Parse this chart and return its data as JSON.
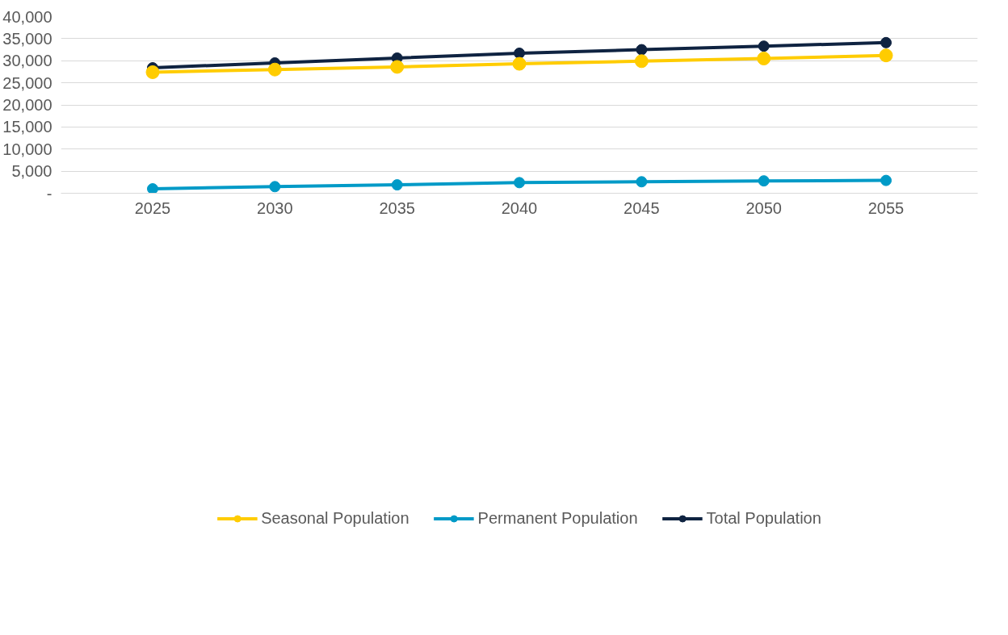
{
  "chart_data": {
    "type": "line",
    "categories": [
      "2025",
      "2030",
      "2035",
      "2040",
      "2045",
      "2050",
      "2055"
    ],
    "series": [
      {
        "name": "Seasonal Population",
        "color": "#ffcc00",
        "values": [
          27400,
          28000,
          28600,
          29300,
          29900,
          30500,
          31200
        ]
      },
      {
        "name": "Permanent Population",
        "color": "#009ac7",
        "values": [
          1000,
          1500,
          1900,
          2400,
          2600,
          2800,
          2900
        ]
      },
      {
        "name": "Total Population",
        "color": "#0f2341",
        "values": [
          28400,
          29500,
          30600,
          31700,
          32500,
          33300,
          34100
        ]
      }
    ],
    "ylim": [
      0,
      40000
    ],
    "yticks": [
      {
        "value": 0,
        "label": "-"
      },
      {
        "value": 5000,
        "label": "5,000"
      },
      {
        "value": 10000,
        "label": "10,000"
      },
      {
        "value": 15000,
        "label": "15,000"
      },
      {
        "value": 20000,
        "label": "20,000"
      },
      {
        "value": 25000,
        "label": "25,000"
      },
      {
        "value": 30000,
        "label": "30,000"
      },
      {
        "value": 35000,
        "label": "35,000"
      },
      {
        "value": 40000,
        "label": "40,000"
      }
    ],
    "grid": "y",
    "legend": "bottom",
    "marker": "circle",
    "line_style": "solid"
  }
}
